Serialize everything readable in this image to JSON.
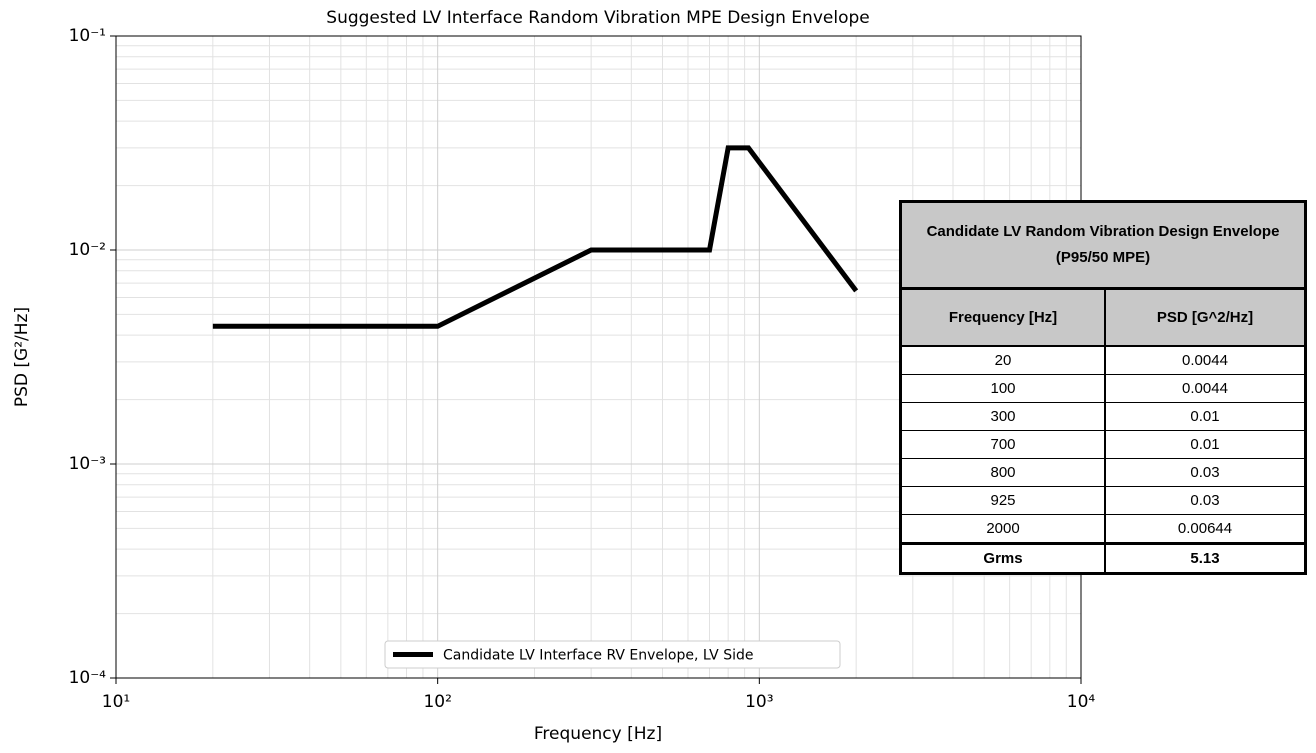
{
  "chart_data": {
    "type": "line",
    "title": "Suggested LV Interface Random Vibration MPE Design Envelope",
    "xlabel": "Frequency [Hz]",
    "ylabel": "PSD [G²/Hz]",
    "x": [
      20,
      100,
      300,
      700,
      800,
      925,
      2000
    ],
    "series": [
      {
        "name": "Candidate LV Interface RV Envelope, LV Side",
        "color": "#000000",
        "values": [
          0.0044,
          0.0044,
          0.01,
          0.01,
          0.03,
          0.03,
          0.00644
        ]
      }
    ],
    "xlim": [
      10,
      10000
    ],
    "ylim": [
      0.0001,
      0.1
    ],
    "xticks": [
      {
        "value": 10,
        "label": "10¹"
      },
      {
        "value": 100,
        "label": "10²"
      },
      {
        "value": 1000,
        "label": "10³"
      },
      {
        "value": 10000,
        "label": "10⁴"
      }
    ],
    "yticks": [
      {
        "value": 0.0001,
        "label": "10⁻⁴"
      },
      {
        "value": 0.001,
        "label": "10⁻³"
      },
      {
        "value": 0.01,
        "label": "10⁻²"
      },
      {
        "value": 0.1,
        "label": "10⁻¹"
      }
    ],
    "xscale": "log",
    "yscale": "log",
    "grid": true,
    "minor_grid": true,
    "legend": "lower center"
  },
  "table": {
    "title": "Candidate LV Random Vibration Design Envelope (P95/50 MPE)",
    "headers": [
      "Frequency [Hz]",
      "PSD [G^2/Hz]"
    ],
    "rows": [
      [
        "20",
        "0.0044"
      ],
      [
        "100",
        "0.0044"
      ],
      [
        "300",
        "0.01"
      ],
      [
        "700",
        "0.01"
      ],
      [
        "800",
        "0.03"
      ],
      [
        "925",
        "0.03"
      ],
      [
        "2000",
        "0.00644"
      ]
    ],
    "footer": [
      "Grms",
      "5.13"
    ]
  }
}
